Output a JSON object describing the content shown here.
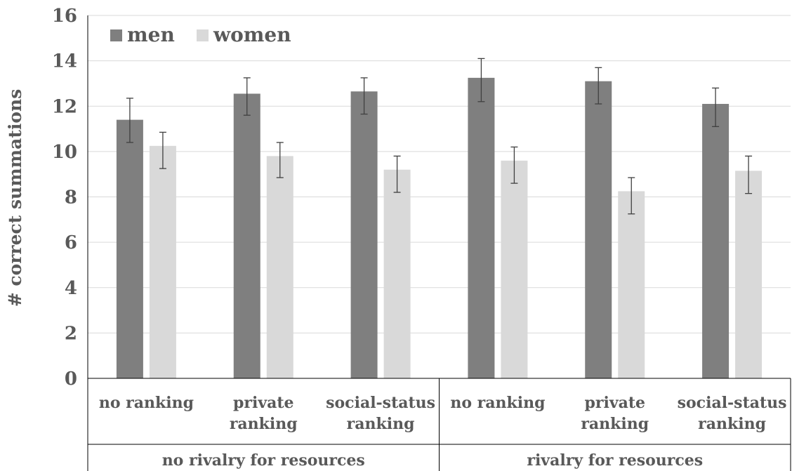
{
  "chart_data": {
    "type": "bar",
    "ylabel": "# correct summations",
    "ylim": [
      0,
      16
    ],
    "yticks": [
      0,
      2,
      4,
      6,
      8,
      10,
      12,
      14,
      16
    ],
    "grid": true,
    "legend": "top-left",
    "categories": [
      {
        "line1": "no  ranking",
        "line2": ""
      },
      {
        "line1": "private",
        "line2": "ranking"
      },
      {
        "line1": "social-status",
        "line2": "ranking"
      },
      {
        "line1": "no  ranking",
        "line2": ""
      },
      {
        "line1": "private",
        "line2": "ranking"
      },
      {
        "line1": "social-status",
        "line2": "ranking"
      }
    ],
    "groups": [
      {
        "label": "no rivalry for resources",
        "categories": [
          0,
          1,
          2
        ]
      },
      {
        "label": "rivalry for resources",
        "categories": [
          3,
          4,
          5
        ]
      }
    ],
    "series": [
      {
        "name": "men",
        "color": "#7f7f7f",
        "values": [
          11.4,
          12.55,
          12.65,
          13.25,
          13.1,
          12.1
        ],
        "error_low": [
          10.4,
          11.6,
          11.65,
          12.2,
          12.1,
          11.1
        ],
        "error_high": [
          12.35,
          13.25,
          13.25,
          14.1,
          13.7,
          12.8
        ]
      },
      {
        "name": "women",
        "color": "#d9d9d9",
        "values": [
          10.25,
          9.8,
          9.2,
          9.6,
          8.25,
          9.15
        ],
        "error_low": [
          9.25,
          8.85,
          8.2,
          8.6,
          7.25,
          8.15
        ],
        "error_high": [
          10.85,
          10.4,
          9.8,
          10.2,
          8.85,
          9.8
        ]
      }
    ]
  }
}
